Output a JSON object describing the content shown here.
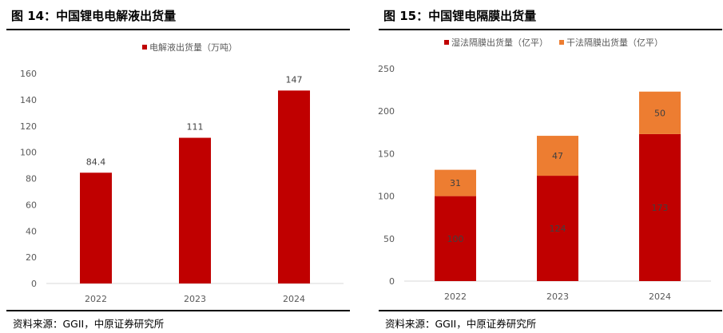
{
  "colors": {
    "red": "#c00000",
    "orange": "#ed7d31"
  },
  "left": {
    "title": "图 14：中国锂电电解液出货量",
    "source": "资料来源：GGII，中原证券研究所"
  },
  "right": {
    "title": "图 15：中国锂电隔膜出货量",
    "source": "资料来源：GGII，中原证券研究所"
  },
  "chart_data": [
    {
      "type": "bar",
      "title": "",
      "categories": [
        "2022",
        "2023",
        "2024"
      ],
      "series": [
        {
          "name": "电解液出货量（万吨）",
          "values": [
            84.4,
            111,
            147
          ],
          "labels": [
            "84.4",
            "111",
            "147"
          ]
        }
      ],
      "ylim": [
        0,
        160
      ],
      "yticks": [
        0,
        20,
        40,
        60,
        80,
        100,
        120,
        140,
        160
      ],
      "legend": "top",
      "grid": false
    },
    {
      "type": "bar",
      "stacked": true,
      "title": "",
      "categories": [
        "2022",
        "2023",
        "2024"
      ],
      "series": [
        {
          "name": "湿法隔膜出货量（亿平）",
          "values": [
            100,
            124,
            173
          ],
          "labels": [
            "100",
            "124",
            "173"
          ]
        },
        {
          "name": "干法隔膜出货量（亿平）",
          "values": [
            31,
            47,
            50
          ],
          "labels": [
            "31",
            "47",
            "50"
          ]
        }
      ],
      "ylim": [
        0,
        250
      ],
      "yticks": [
        0,
        50,
        100,
        150,
        200,
        250
      ],
      "legend": "top",
      "grid": false
    }
  ]
}
